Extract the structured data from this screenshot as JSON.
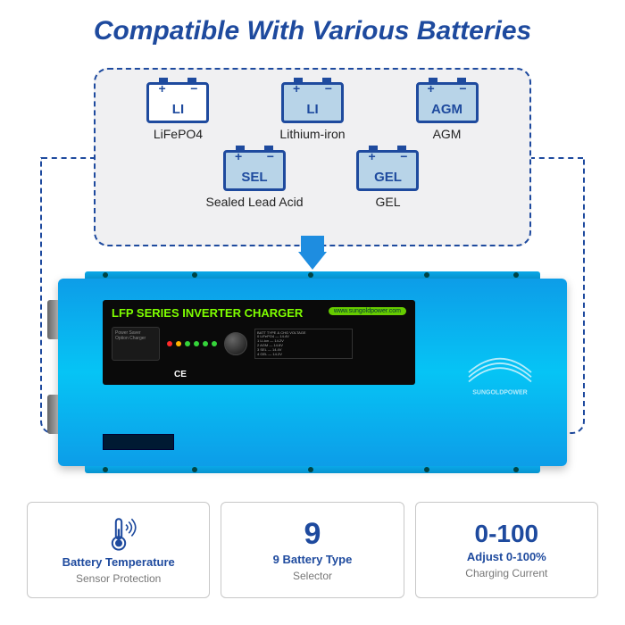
{
  "title": "Compatible With Various Batteries",
  "colors": {
    "primary": "#1e4a9e",
    "device_gradient_top": "#0d9de8",
    "device_gradient_mid": "#06c4f5",
    "panel_title": "#7fff00",
    "battery_box_bg": "#f0f0f2",
    "feature_border": "#c8c8c8",
    "subtext": "#777777"
  },
  "batteries": {
    "row1": [
      {
        "chem": "LI",
        "fill": "light",
        "label": "LiFePO4"
      },
      {
        "chem": "LI",
        "fill": "dark",
        "label": "Lithium-iron"
      },
      {
        "chem": "AGM",
        "fill": "dark",
        "label": "AGM"
      }
    ],
    "row2": [
      {
        "chem": "SEL",
        "fill": "dark",
        "label": "Sealed Lead Acid"
      },
      {
        "chem": "GEL",
        "fill": "dark",
        "label": "GEL"
      }
    ]
  },
  "device": {
    "panel_title": "LFP SERIES INVERTER CHARGER",
    "url_pill": "www.sungoldpower.com",
    "brand": "SUNGOLDPOWER",
    "ce_mark": "CE",
    "led_colors": [
      "#ff2a2a",
      "#ffb400",
      "#35d43a",
      "#35d43a",
      "#35d43a",
      "#35d43a"
    ]
  },
  "features": [
    {
      "type": "icon",
      "line1": "Battery Temperature",
      "line2": "Sensor Protection"
    },
    {
      "type": "number",
      "big": "9",
      "line1": "9 Battery Type",
      "line2": "Selector"
    },
    {
      "type": "number",
      "big": "0-100",
      "line1": "Adjust 0-100%",
      "line2": "Charging Current"
    }
  ]
}
